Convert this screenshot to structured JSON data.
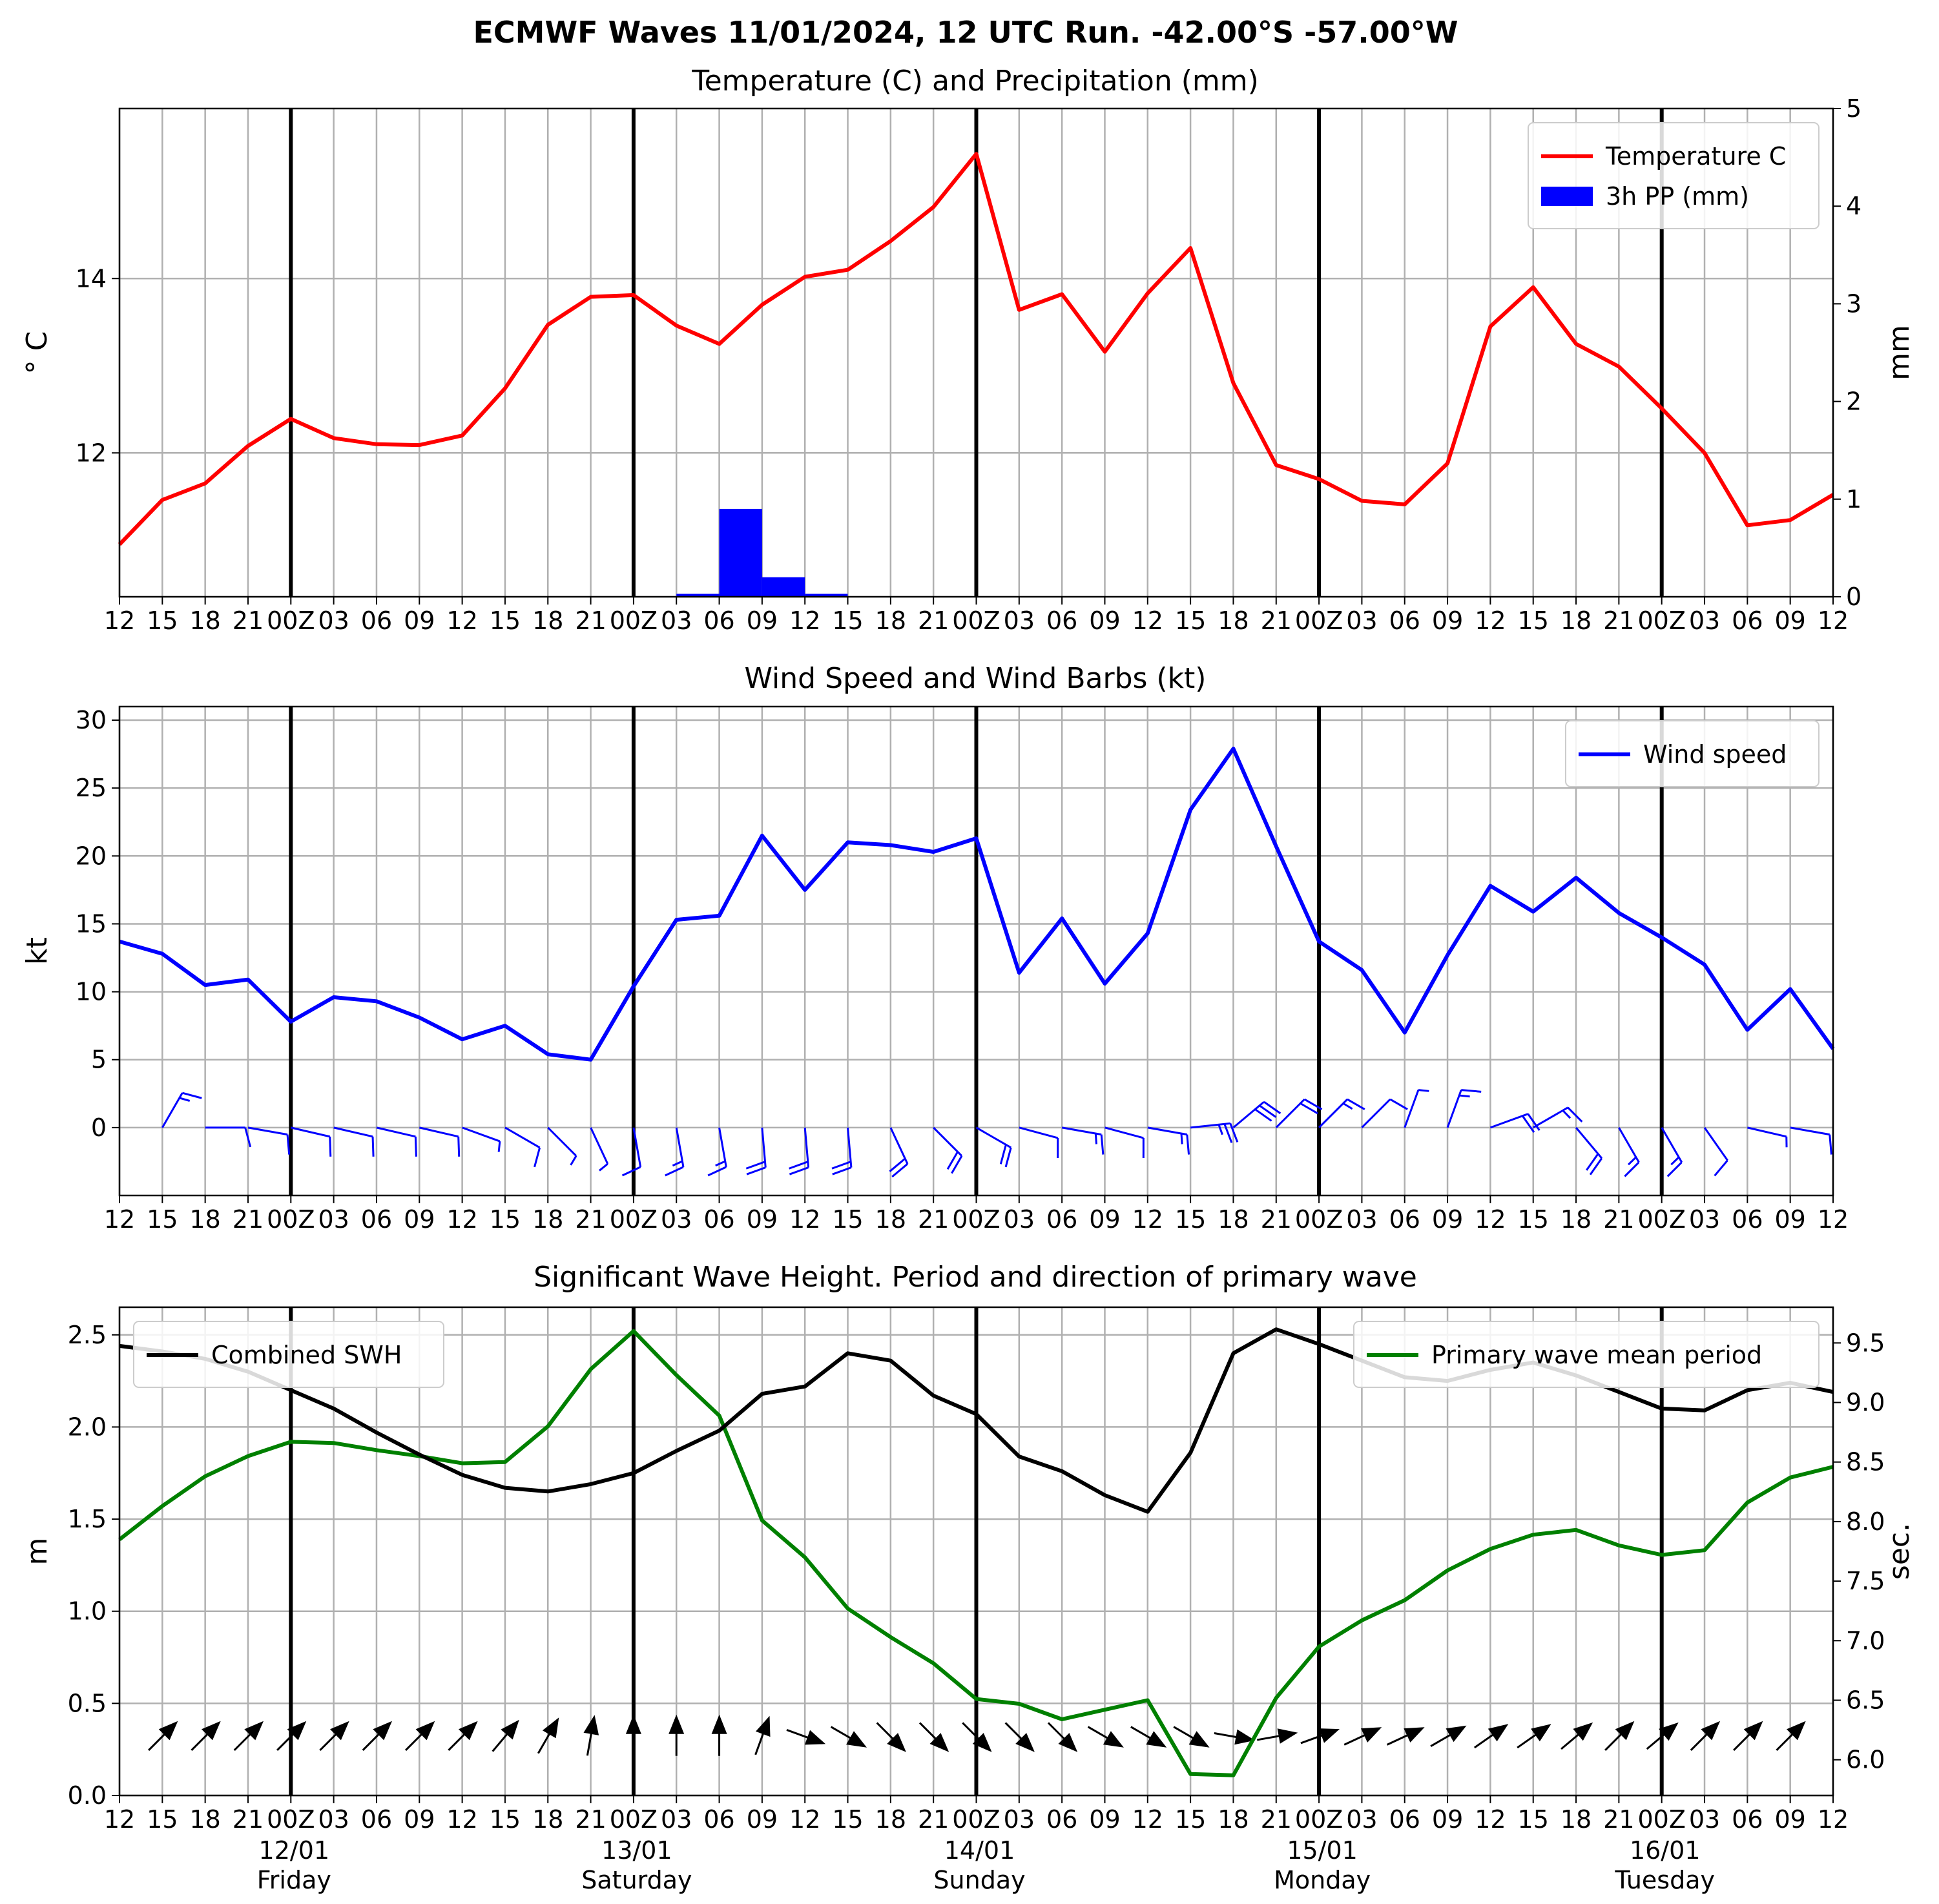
{
  "figure": {
    "title": "ECMWF Waves 11/01/2024, 12 UTC Run. -42.00°S -57.00°W"
  },
  "time_axis": {
    "tick_labels": [
      "12",
      "15",
      "18",
      "21",
      "00Z",
      "03",
      "06",
      "09",
      "12",
      "15",
      "18",
      "21",
      "00Z",
      "03",
      "06",
      "09",
      "12",
      "15",
      "18",
      "21",
      "00Z",
      "03",
      "06",
      "09",
      "12",
      "15",
      "18",
      "21",
      "00Z",
      "03",
      "06",
      "09",
      "12",
      "15",
      "18",
      "21",
      "00Z",
      "03",
      "06",
      "09",
      "12"
    ],
    "day_ticks": [
      4,
      12,
      20,
      28,
      36
    ],
    "day_dates": [
      "12/01",
      "13/01",
      "14/01",
      "15/01",
      "16/01"
    ],
    "day_names": [
      "Friday",
      "Saturday",
      "Sunday",
      "Monday",
      "Tuesday"
    ]
  },
  "chart_data": [
    {
      "type": "line",
      "title": "Temperature (C) and Precipitation (mm)",
      "ylabel": "$^\\circ$C",
      "ylabel_text": "° C",
      "y2label": "mm",
      "ylim": [
        10.35,
        15.95
      ],
      "y2lim": [
        0,
        5
      ],
      "yticks": [
        12,
        14
      ],
      "y2ticks": [
        0,
        1,
        2,
        3,
        4,
        5
      ],
      "grid": true,
      "legend_position": "top-right",
      "series": [
        {
          "name": "Temperature C",
          "color": "#ff0000",
          "values": [
            10.95,
            11.46,
            11.65,
            12.08,
            12.39,
            12.17,
            12.1,
            12.09,
            12.2,
            12.74,
            13.47,
            13.79,
            13.81,
            13.46,
            13.25,
            13.7,
            14.02,
            14.1,
            14.43,
            14.82,
            15.43,
            13.64,
            13.82,
            13.16,
            13.83,
            14.35,
            12.8,
            11.86,
            11.7,
            11.45,
            11.41,
            11.88,
            13.45,
            13.9,
            13.25,
            12.99,
            12.51,
            12.0,
            11.17,
            11.23,
            11.52
          ]
        },
        {
          "name": "3h PP (mm)",
          "type": "bar",
          "color": "#0000ff",
          "values": [
            0,
            0,
            0,
            0,
            0,
            0,
            0,
            0,
            0,
            0,
            0,
            0,
            0,
            0.03,
            0.9,
            0.2,
            0.03,
            0,
            0,
            0,
            0,
            0,
            0,
            0,
            0,
            0,
            0,
            0,
            0,
            0,
            0,
            0,
            0,
            0,
            0,
            0,
            0,
            0,
            0,
            0
          ]
        }
      ]
    },
    {
      "type": "line",
      "title": "Wind Speed and Wind Barbs (kt)",
      "ylabel": "kt",
      "ylim": [
        -5,
        31
      ],
      "yticks": [
        0,
        5,
        10,
        15,
        20,
        25,
        30
      ],
      "grid": true,
      "legend_position": "top-right",
      "series": [
        {
          "name": "Wind speed",
          "color": "#0000ff",
          "values": [
            13.7,
            12.8,
            10.5,
            10.9,
            7.8,
            9.6,
            9.3,
            8.1,
            6.5,
            7.5,
            5.4,
            5.0,
            10.4,
            15.3,
            15.6,
            21.5,
            17.5,
            21.0,
            20.8,
            20.3,
            21.3,
            11.4,
            15.4,
            10.6,
            14.3,
            23.4,
            27.9,
            20.7,
            13.7,
            11.6,
            7.0,
            12.7,
            17.8,
            15.9,
            18.4,
            15.8,
            14.0,
            12.0,
            7.2,
            10.2,
            5.8
          ]
        }
      ],
      "wind_barb_direction_deg": [
        196,
        210,
        270,
        280,
        283,
        283,
        283,
        283,
        290,
        300,
        315,
        335,
        350,
        350,
        350,
        355,
        355,
        355,
        335,
        315,
        300,
        285,
        280,
        285,
        280,
        264,
        230,
        225,
        225,
        225,
        200,
        200,
        250,
        240,
        320,
        330,
        330,
        325,
        283,
        280,
        270
      ],
      "wind_barb_color": "#0000ff"
    },
    {
      "type": "line",
      "title": "Significant Wave Height. Period and direction of primary wave",
      "ylabel": "m",
      "y2label": "sec.",
      "ylim": [
        0,
        2.65
      ],
      "y2lim": [
        5.7,
        9.8
      ],
      "yticks": [
        0.0,
        0.5,
        1.0,
        1.5,
        2.0,
        2.5
      ],
      "y2ticks": [
        6.0,
        6.5,
        7.0,
        7.5,
        8.0,
        8.5,
        9.0,
        9.5
      ],
      "grid": true,
      "series": [
        {
          "name": "Combined SWH",
          "color": "#000000",
          "legend_position": "top-left",
          "values": [
            2.44,
            2.41,
            2.37,
            2.3,
            2.2,
            2.1,
            1.97,
            1.85,
            1.74,
            1.67,
            1.65,
            1.69,
            1.75,
            1.87,
            1.98,
            2.18,
            2.22,
            2.4,
            2.36,
            2.17,
            2.07,
            1.84,
            1.76,
            1.63,
            1.54,
            1.86,
            2.4,
            2.53,
            2.45,
            2.36,
            2.27,
            2.25,
            2.31,
            2.35,
            2.28,
            2.19,
            2.1,
            2.09,
            2.2,
            2.24,
            2.19
          ]
        },
        {
          "name": "Primary wave mean period",
          "color": "#008000",
          "legend_position": "top-right",
          "axis": "y2",
          "values": [
            7.85,
            8.13,
            8.38,
            8.55,
            8.67,
            8.66,
            8.6,
            8.55,
            8.49,
            8.5,
            8.8,
            9.28,
            9.6,
            9.23,
            8.89,
            8.01,
            7.7,
            7.27,
            7.03,
            6.81,
            6.51,
            6.47,
            6.34,
            6.42,
            6.5,
            5.88,
            5.87,
            6.52,
            6.95,
            7.17,
            7.34,
            7.59,
            7.77,
            7.89,
            7.93,
            7.8,
            7.72,
            7.76,
            8.16,
            8.37,
            8.46
          ]
        }
      ],
      "wave_direction_deg": [
        225,
        225,
        225,
        225,
        225,
        225,
        225,
        225,
        225,
        220,
        210,
        190,
        180,
        180,
        180,
        200,
        290,
        300,
        315,
        315,
        315,
        315,
        315,
        300,
        300,
        300,
        280,
        260,
        250,
        245,
        245,
        240,
        235,
        235,
        230,
        225,
        230,
        225,
        225,
        225,
        225
      ]
    }
  ]
}
